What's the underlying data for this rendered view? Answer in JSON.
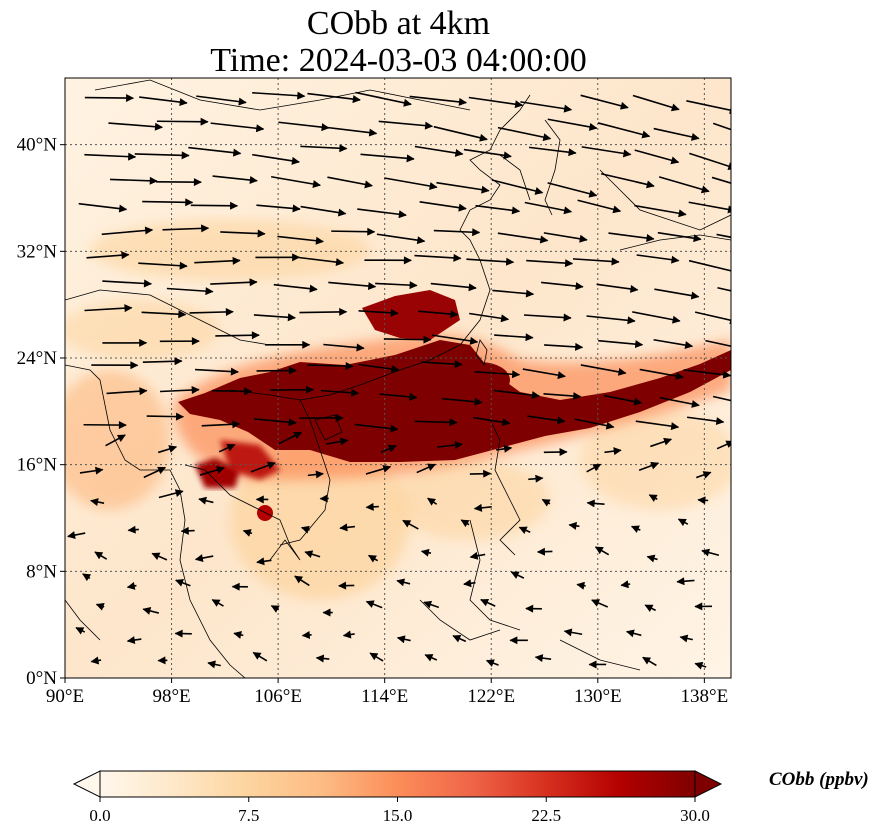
{
  "title": {
    "line1": "CObb at 4km",
    "line2": "Time: 2024-03-03 04:00:00"
  },
  "map": {
    "lon_range": [
      90,
      140
    ],
    "lat_range": [
      0,
      45
    ],
    "lat_ticks": [
      {
        "value": 0,
        "label": "0°N"
      },
      {
        "value": 8,
        "label": "8°N"
      },
      {
        "value": 16,
        "label": "16°N"
      },
      {
        "value": 24,
        "label": "24°N"
      },
      {
        "value": 32,
        "label": "32°N"
      },
      {
        "value": 40,
        "label": "40°N"
      }
    ],
    "lon_ticks": [
      {
        "value": 90,
        "label": "90°E"
      },
      {
        "value": 98,
        "label": "98°E"
      },
      {
        "value": 106,
        "label": "106°E"
      },
      {
        "value": 114,
        "label": "114°E"
      },
      {
        "value": 122,
        "label": "122°E"
      },
      {
        "value": 130,
        "label": "130°E"
      },
      {
        "value": 138,
        "label": "138°E"
      }
    ],
    "gridlines": "dotted",
    "field_variable": "CObb",
    "plume_description_colors": {
      "high": "#7f0000",
      "mid": "#d7301f",
      "low": "#fdd49e",
      "background": "#fff1df"
    }
  },
  "colorbar": {
    "title": "CObb (ppbv)",
    "min": 0.0,
    "max": 30.0,
    "extend": "both",
    "ticks": [
      "0.0",
      "7.5",
      "15.0",
      "22.5",
      "30.0"
    ],
    "colors": [
      "#fff7ec",
      "#fee8c8",
      "#fdd49e",
      "#fdbb84",
      "#fc8d59",
      "#ef6548",
      "#d7301f",
      "#b30000",
      "#7f0000"
    ]
  }
}
